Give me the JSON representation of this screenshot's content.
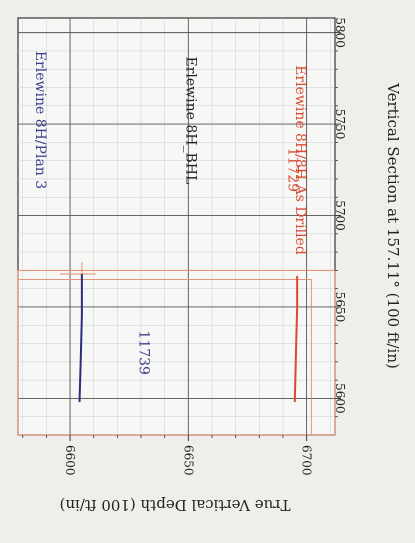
{
  "chart_data": {
    "type": "line",
    "rotated": "90deg-clockwise",
    "xlabel": "Vertical Section at 157.11° (100 ft/in)",
    "ylabel": "True Vertical Depth (100 ft/in)",
    "xlim": [
      5580,
      5808
    ],
    "ylim": [
      6578,
      6712
    ],
    "x_ticks": [
      5600,
      5650,
      5700,
      5750,
      5800
    ],
    "y_ticks": [
      6600,
      6650,
      6700
    ],
    "grid": true,
    "annotations": [
      {
        "text": "11739",
        "x": 5625,
        "y": 6631,
        "color": "#3a3f8a"
      },
      {
        "text": "11729",
        "x": 5725,
        "y": 6694,
        "color": "#d94a30"
      },
      {
        "text": "Erlewine 8H_BHL",
        "x": 5752,
        "y": 6651,
        "color": "#222222"
      }
    ],
    "legend": [
      {
        "text": "Erlewine 8H/Plan 3",
        "color": "#3a3f8a",
        "position": "top"
      },
      {
        "text": "Erlewine 8H/8H As Drilled",
        "color": "#d94a30",
        "position": "bottom"
      }
    ],
    "series": [
      {
        "name": "Erlewine 8H/Plan 3",
        "color": "#2a2f78",
        "x": [
          5598,
          5620,
          5645,
          5668
        ],
        "y": [
          6604,
          6604.5,
          6605,
          6605
        ]
      },
      {
        "name": "Erlewine 8H/8H As Drilled",
        "color": "#d94a30",
        "x": [
          5598,
          5625,
          5650,
          5667
        ],
        "y": [
          6695,
          6695.5,
          6696,
          6696
        ]
      }
    ],
    "target_box": {
      "x": [
        5580,
        5670
      ],
      "y": [
        6578,
        6712
      ],
      "color": "#e58a6e"
    }
  }
}
